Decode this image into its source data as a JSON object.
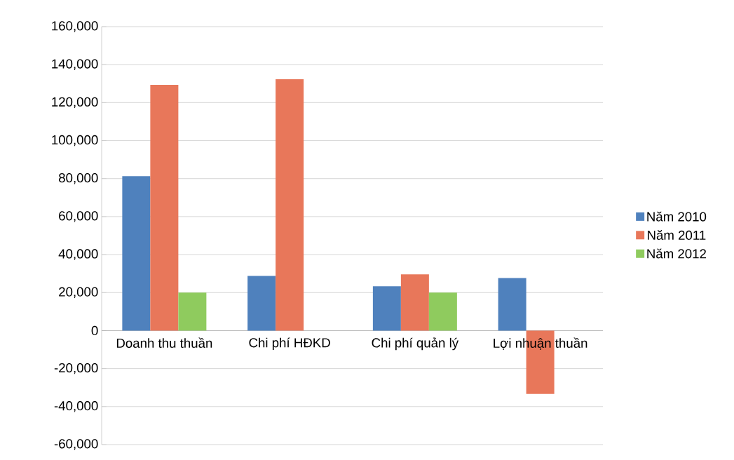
{
  "chart_data": {
    "type": "bar",
    "categories": [
      "Doanh thu thuần",
      "Chi phí HĐKD",
      "Chi phí quản lý",
      "Lợi nhuận thuần"
    ],
    "series": [
      {
        "name": "Năm 2010",
        "color": "#4f81bd",
        "values": [
          81300,
          28800,
          23300,
          27700
        ]
      },
      {
        "name": "Năm 2011",
        "color": "#e8775a",
        "values": [
          129400,
          132300,
          29600,
          -33300
        ]
      },
      {
        "name": "Năm 2012",
        "color": "#8fcb5e",
        "values": [
          20000,
          null,
          20000,
          null
        ]
      }
    ],
    "ylim": [
      -60000,
      160000
    ],
    "yticks": [
      {
        "value": -60000,
        "label": "-60,000"
      },
      {
        "value": -40000,
        "label": "-40,000"
      },
      {
        "value": -20000,
        "label": "-20,000"
      },
      {
        "value": 0,
        "label": "0"
      },
      {
        "value": 20000,
        "label": "20,000"
      },
      {
        "value": 40000,
        "label": "40,000"
      },
      {
        "value": 60000,
        "label": "60,000"
      },
      {
        "value": 80000,
        "label": "80,000"
      },
      {
        "value": 100000,
        "label": "100,000"
      },
      {
        "value": 120000,
        "label": "120,000"
      },
      {
        "value": 140000,
        "label": "140,000"
      },
      {
        "value": 160000,
        "label": "160,000"
      }
    ],
    "grid": "y",
    "legend": "right"
  }
}
